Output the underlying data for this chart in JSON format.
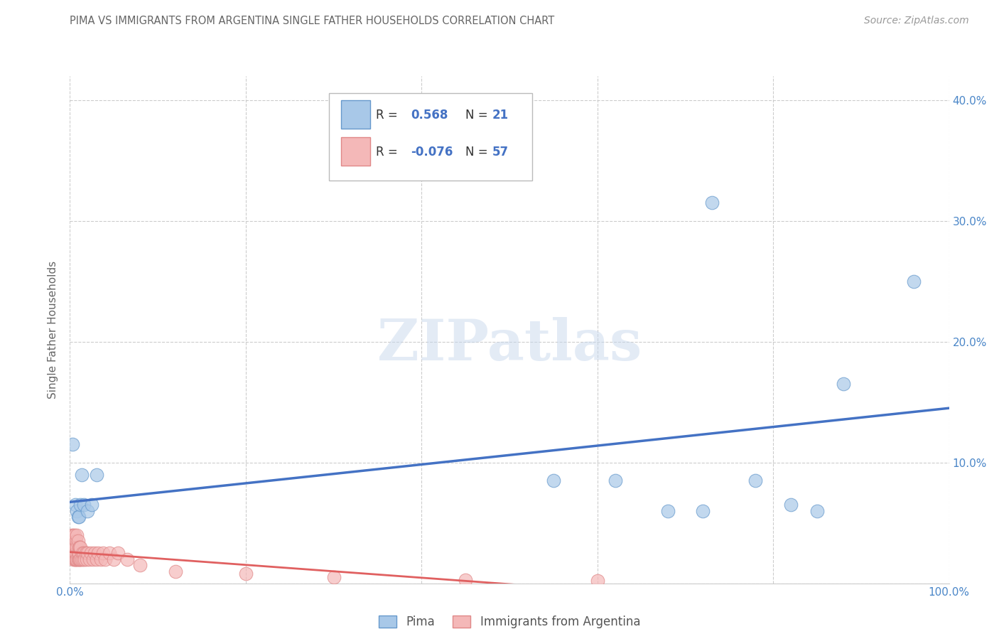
{
  "title": "PIMA VS IMMIGRANTS FROM ARGENTINA SINGLE FATHER HOUSEHOLDS CORRELATION CHART",
  "source": "Source: ZipAtlas.com",
  "ylabel": "Single Father Households",
  "xlim": [
    0,
    1.0
  ],
  "ylim": [
    0.0,
    0.42
  ],
  "xticks": [
    0.0,
    0.2,
    0.4,
    0.6,
    0.8,
    1.0
  ],
  "xticklabels": [
    "0.0%",
    "",
    "",
    "",
    "",
    "100.0%"
  ],
  "yticks": [
    0.0,
    0.1,
    0.2,
    0.3,
    0.4
  ],
  "yticklabels_right": [
    "",
    "10.0%",
    "20.0%",
    "30.0%",
    "40.0%"
  ],
  "pima_color": "#a8c8e8",
  "pima_edge_color": "#6699cc",
  "argentina_color": "#f4b8b8",
  "argentina_edge_color": "#e08888",
  "pima_line_color": "#4472c4",
  "argentina_line_color": "#e06060",
  "legend_pima_label": "Pima",
  "legend_argentina_label": "Immigrants from Argentina",
  "pima_R": "0.568",
  "pima_N": "21",
  "argentina_R": "-0.076",
  "argentina_N": "57",
  "watermark_text": "ZIPatlas",
  "pima_x": [
    0.003,
    0.006,
    0.008,
    0.009,
    0.01,
    0.012,
    0.013,
    0.016,
    0.02,
    0.025,
    0.03,
    0.55,
    0.62,
    0.68,
    0.72,
    0.73,
    0.78,
    0.82,
    0.85,
    0.88,
    0.96
  ],
  "pima_y": [
    0.115,
    0.065,
    0.06,
    0.055,
    0.055,
    0.065,
    0.09,
    0.065,
    0.06,
    0.065,
    0.09,
    0.085,
    0.085,
    0.06,
    0.06,
    0.315,
    0.085,
    0.065,
    0.06,
    0.165,
    0.25
  ],
  "argentina_x": [
    0.002,
    0.002,
    0.003,
    0.003,
    0.004,
    0.004,
    0.004,
    0.005,
    0.005,
    0.005,
    0.005,
    0.006,
    0.006,
    0.006,
    0.007,
    0.007,
    0.007,
    0.008,
    0.008,
    0.008,
    0.009,
    0.009,
    0.009,
    0.01,
    0.01,
    0.01,
    0.011,
    0.011,
    0.012,
    0.012,
    0.013,
    0.014,
    0.015,
    0.016,
    0.017,
    0.018,
    0.019,
    0.02,
    0.022,
    0.024,
    0.026,
    0.028,
    0.03,
    0.032,
    0.035,
    0.038,
    0.04,
    0.045,
    0.05,
    0.055,
    0.065,
    0.08,
    0.12,
    0.2,
    0.3,
    0.45,
    0.6
  ],
  "argentina_y": [
    0.03,
    0.04,
    0.025,
    0.03,
    0.02,
    0.025,
    0.04,
    0.02,
    0.025,
    0.03,
    0.04,
    0.02,
    0.025,
    0.03,
    0.02,
    0.025,
    0.035,
    0.02,
    0.03,
    0.04,
    0.02,
    0.025,
    0.035,
    0.02,
    0.025,
    0.03,
    0.02,
    0.03,
    0.02,
    0.03,
    0.02,
    0.025,
    0.02,
    0.025,
    0.02,
    0.025,
    0.02,
    0.025,
    0.02,
    0.025,
    0.02,
    0.025,
    0.02,
    0.025,
    0.02,
    0.025,
    0.02,
    0.025,
    0.02,
    0.025,
    0.02,
    0.015,
    0.01,
    0.008,
    0.005,
    0.003,
    0.002
  ],
  "background_color": "#ffffff",
  "grid_color": "#cccccc",
  "title_color": "#666666",
  "tick_color": "#4a86c8"
}
